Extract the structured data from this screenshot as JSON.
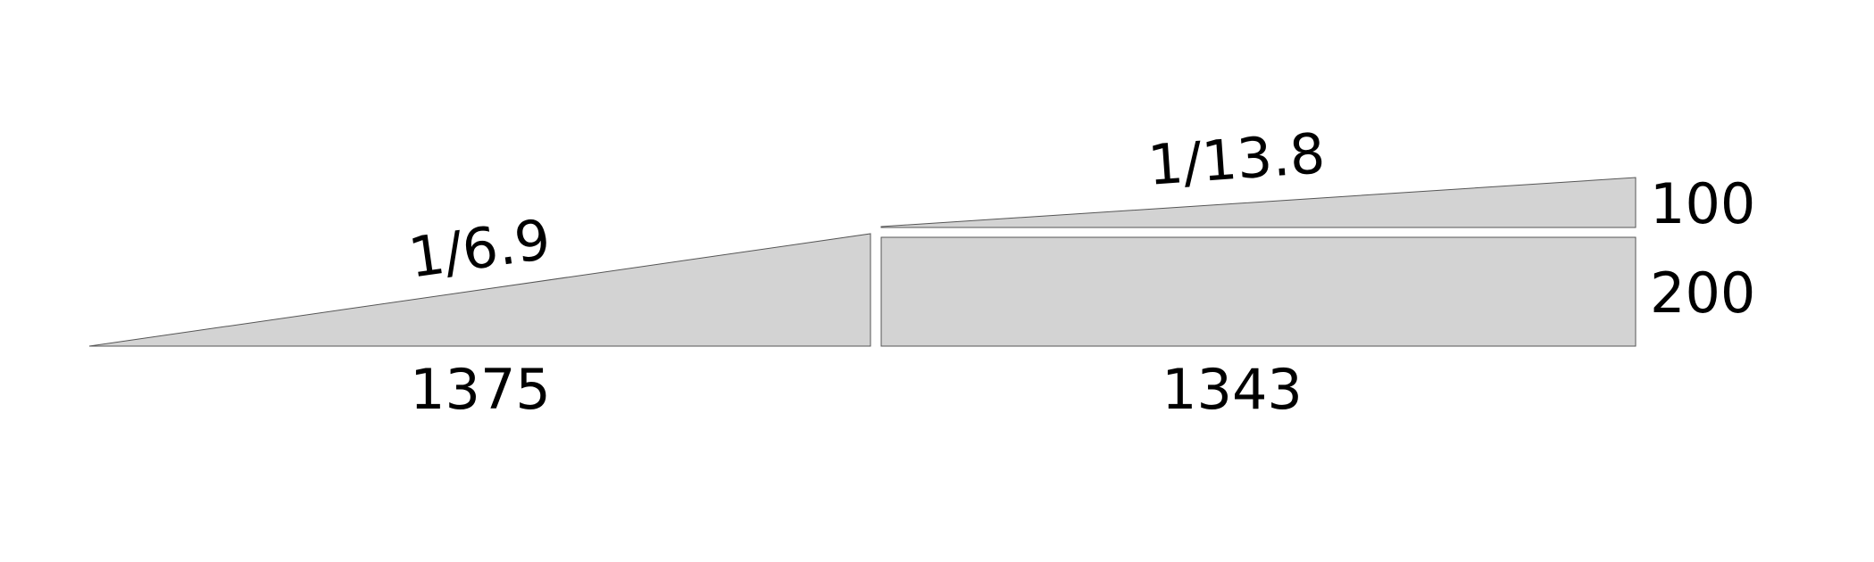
{
  "colors": {
    "background": "#ffffff",
    "fill": "#d3d3d3",
    "stroke": "#555555",
    "text": "#000000"
  },
  "ramps": [
    {
      "slope_label": "1/6.9",
      "length_label": "1375"
    },
    {
      "slope_label": "1/13.8",
      "length_label": "1343"
    }
  ],
  "heights": {
    "top_label": "100",
    "base_label": "200"
  }
}
